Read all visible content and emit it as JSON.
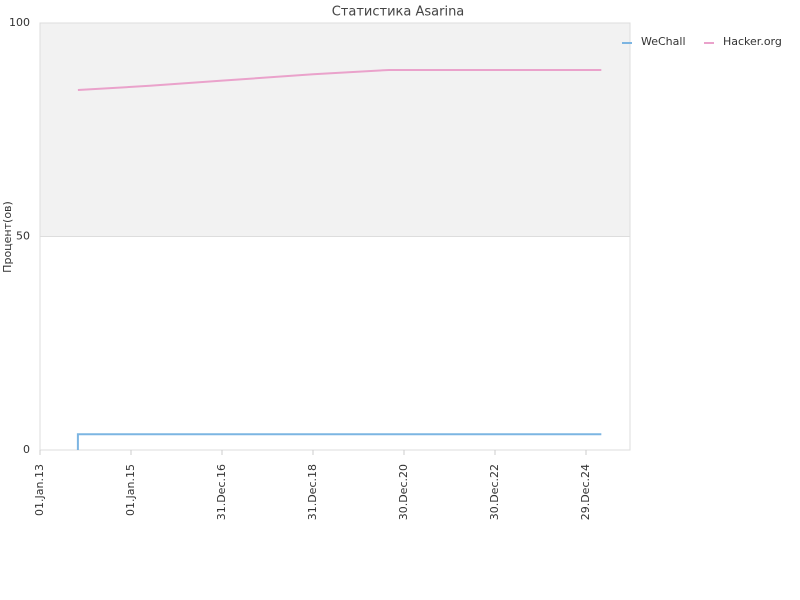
{
  "chart_data": {
    "type": "line",
    "title": "Статистика Asarina",
    "y_label": "Процент(ов)",
    "xlim": [
      "2013-01-01",
      "2025-12-17"
    ],
    "xticks": [
      {
        "value": "2013-01-01",
        "label": "01.Jan.13"
      },
      {
        "value": "2015-01-01",
        "label": "01.Jan.15"
      },
      {
        "value": "2016-12-31",
        "label": "31.Dec.16"
      },
      {
        "value": "2018-12-31",
        "label": "31.Dec.18"
      },
      {
        "value": "2020-12-30",
        "label": "30.Dec.20"
      },
      {
        "value": "2022-12-30",
        "label": "30.Dec.22"
      },
      {
        "value": "2024-12-29",
        "label": "29.Dec.24"
      }
    ],
    "ylim": [
      0,
      100
    ],
    "yticks": [
      0,
      50,
      100
    ],
    "grid": true,
    "legend": "top-right",
    "series": [
      {
        "name": "WeChall",
        "color": "#7cb5e2",
        "x": [
          "2013-11-01",
          "2013-11-01",
          "2025-05-01"
        ],
        "values": [
          0,
          3.7,
          3.7
        ]
      },
      {
        "name": "Hacker.org",
        "color": "#eaa2cb",
        "x": [
          "2013-11-01",
          "2015-06-01",
          "2017-01-01",
          "2019-01-01",
          "2020-09-01",
          "2025-05-01"
        ],
        "values": [
          84.3,
          85.3,
          86.5,
          88.0,
          89.0,
          89.0
        ]
      }
    ]
  }
}
